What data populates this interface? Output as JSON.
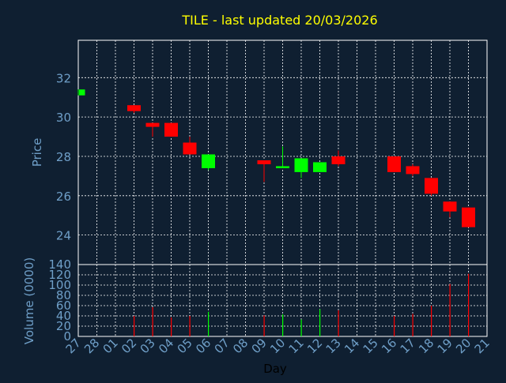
{
  "chart_data": [
    {
      "type": "candlestick",
      "title": "TILE - last updated 20/03/2026",
      "ylabel": "Price",
      "ylim": [
        22.5,
        33.9
      ],
      "yticks": [
        24,
        26,
        28,
        30,
        32
      ],
      "grid": true,
      "colors": {
        "up": "#00ff00",
        "down": "#ff0000",
        "title": "#ffff00",
        "axis_text": "#6f9fc8",
        "frame": "#ffffff",
        "grid": "#ffffff",
        "background": "#0f1f31"
      },
      "candles": [
        {
          "date": "27",
          "open": 31.1,
          "high": 31.4,
          "low": 31.1,
          "close": 31.4
        },
        {
          "date": "02",
          "open": 30.6,
          "high": 30.6,
          "low": 30.2,
          "close": 30.3
        },
        {
          "date": "03",
          "open": 29.7,
          "high": 29.7,
          "low": 29.0,
          "close": 29.5
        },
        {
          "date": "04",
          "open": 29.7,
          "high": 29.7,
          "low": 29.0,
          "close": 29.0
        },
        {
          "date": "05",
          "open": 28.7,
          "high": 29.0,
          "low": 28.1,
          "close": 28.1
        },
        {
          "date": "06",
          "open": 27.4,
          "high": 28.1,
          "low": 27.3,
          "close": 28.1
        },
        {
          "date": "09",
          "open": 27.8,
          "high": 27.8,
          "low": 26.7,
          "close": 27.6
        },
        {
          "date": "10",
          "open": 27.4,
          "high": 28.5,
          "low": 27.4,
          "close": 27.5
        },
        {
          "date": "11",
          "open": 27.2,
          "high": 27.9,
          "low": 26.9,
          "close": 27.9
        },
        {
          "date": "12",
          "open": 27.2,
          "high": 27.7,
          "low": 27.2,
          "close": 27.7
        },
        {
          "date": "13",
          "open": 28.0,
          "high": 28.3,
          "low": 27.5,
          "close": 27.6
        },
        {
          "date": "16",
          "open": 28.0,
          "high": 28.0,
          "low": 27.2,
          "close": 27.2
        },
        {
          "date": "17",
          "open": 27.5,
          "high": 27.6,
          "low": 27.0,
          "close": 27.1
        },
        {
          "date": "18",
          "open": 26.9,
          "high": 26.9,
          "low": 26.0,
          "close": 26.1
        },
        {
          "date": "19",
          "open": 25.7,
          "high": 25.7,
          "low": 24.9,
          "close": 25.2
        },
        {
          "date": "20",
          "open": 25.4,
          "high": 25.4,
          "low": 24.4,
          "close": 24.4
        }
      ]
    },
    {
      "type": "bar",
      "ylabel": "Volume (0000)",
      "xlabel": "Day",
      "ylim": [
        0,
        140
      ],
      "yticks": [
        0,
        20,
        40,
        60,
        80,
        100,
        120,
        140
      ],
      "grid": true,
      "categories": [
        "27",
        "28",
        "01",
        "02",
        "03",
        "04",
        "05",
        "06",
        "07",
        "08",
        "09",
        "10",
        "11",
        "12",
        "13",
        "14",
        "15",
        "16",
        "17",
        "18",
        "19",
        "20",
        "21"
      ],
      "bars": [
        {
          "date": "02",
          "value": 40,
          "color": "#ff0000"
        },
        {
          "date": "03",
          "value": 57,
          "color": "#ff0000"
        },
        {
          "date": "04",
          "value": 37,
          "color": "#ff0000"
        },
        {
          "date": "05",
          "value": 40,
          "color": "#ff0000"
        },
        {
          "date": "06",
          "value": 48,
          "color": "#00ff00"
        },
        {
          "date": "09",
          "value": 41,
          "color": "#ff0000"
        },
        {
          "date": "10",
          "value": 43,
          "color": "#00ff00"
        },
        {
          "date": "11",
          "value": 33,
          "color": "#00ff00"
        },
        {
          "date": "12",
          "value": 53,
          "color": "#00ff00"
        },
        {
          "date": "13",
          "value": 51,
          "color": "#ff0000"
        },
        {
          "date": "16",
          "value": 40,
          "color": "#ff0000"
        },
        {
          "date": "17",
          "value": 44,
          "color": "#ff0000"
        },
        {
          "date": "18",
          "value": 60,
          "color": "#ff0000"
        },
        {
          "date": "19",
          "value": 102,
          "color": "#ff0000"
        },
        {
          "date": "20",
          "value": 122,
          "color": "#ff0000"
        }
      ]
    }
  ]
}
